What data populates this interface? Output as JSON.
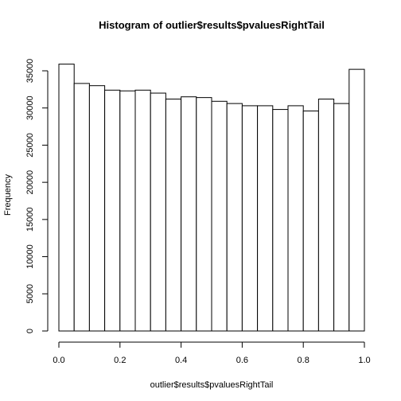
{
  "chart_data": {
    "type": "bar",
    "title": "Histogram of outlier$results$pvaluesRightTail",
    "xlabel": "outlier$results$pvaluesRightTail",
    "ylabel": "Frequency",
    "bin_edges": [
      0.0,
      0.05,
      0.1,
      0.15,
      0.2,
      0.25,
      0.3,
      0.35,
      0.4,
      0.45,
      0.5,
      0.55,
      0.6,
      0.65,
      0.7,
      0.75,
      0.8,
      0.85,
      0.9,
      0.95,
      1.0
    ],
    "values": [
      35900,
      33300,
      33000,
      32400,
      32300,
      32400,
      32000,
      31200,
      31500,
      31400,
      30900,
      30600,
      30300,
      30300,
      29800,
      30300,
      29600,
      31200,
      30600,
      35200
    ],
    "xlim": [
      0.0,
      1.0
    ],
    "ylim": [
      0,
      35000
    ],
    "x_ticks": [
      "0.0",
      "0.2",
      "0.4",
      "0.6",
      "0.8",
      "1.0"
    ],
    "y_ticks": [
      "0",
      "5000",
      "10000",
      "15000",
      "20000",
      "25000",
      "30000",
      "35000"
    ],
    "grid": false,
    "bar_fill": "#ffffff",
    "bar_stroke": "#000000"
  }
}
